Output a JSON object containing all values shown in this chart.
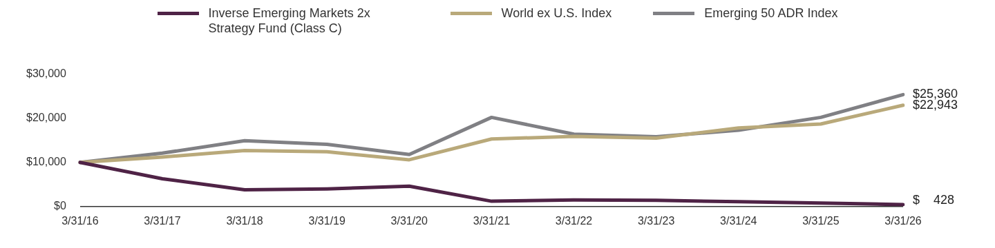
{
  "chart_data": {
    "type": "line",
    "categories": [
      "3/31/16",
      "3/31/17",
      "3/31/18",
      "3/31/19",
      "3/31/20",
      "3/31/21",
      "3/31/22",
      "3/31/23",
      "3/31/24",
      "3/31/25",
      "3/31/26"
    ],
    "series": [
      {
        "name": "Inverse Emerging Markets 2x Strategy Fund (Class C)",
        "color": "#4f2346",
        "values": [
          10000,
          6300,
          3800,
          4000,
          4600,
          1200,
          1500,
          1400,
          1100,
          800,
          428
        ],
        "value_labels": [
          null,
          null,
          null,
          null,
          null,
          null,
          null,
          null,
          null,
          null,
          "$    428"
        ]
      },
      {
        "name": "World ex U.S. Index",
        "color": "#b9a97a",
        "values": [
          10000,
          11200,
          12700,
          12400,
          10600,
          15300,
          15900,
          15500,
          17800,
          18700,
          22943
        ],
        "value_labels": [
          null,
          null,
          null,
          null,
          null,
          null,
          null,
          null,
          null,
          null,
          "$22,943"
        ]
      },
      {
        "name": "Emerging 50 ADR Index",
        "color": "#808084",
        "values": [
          10000,
          12100,
          14900,
          14100,
          11800,
          20200,
          16400,
          15800,
          17300,
          20200,
          25360
        ],
        "value_labels": [
          null,
          null,
          null,
          null,
          null,
          null,
          null,
          null,
          null,
          null,
          "$25,360"
        ]
      }
    ],
    "ylim": [
      0,
      30000
    ],
    "yticks": [
      {
        "value": 0,
        "label": "$0"
      },
      {
        "value": 10000,
        "label": "$10,000"
      },
      {
        "value": 20000,
        "label": "$20,000"
      },
      {
        "value": 30000,
        "label": "$30,000"
      }
    ],
    "grid": false,
    "legend": "top",
    "marker": "none",
    "line_style": "solid"
  }
}
